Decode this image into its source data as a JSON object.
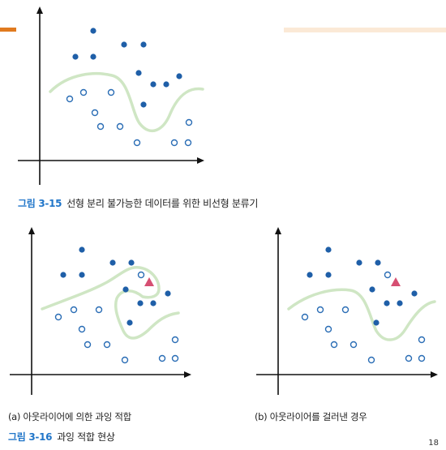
{
  "figures": {
    "fig15": {
      "number": "그림 3-15",
      "caption": "선형 분리 불가능한 데이터를 위한 비선형 분류기",
      "filled_points": [
        [
          115,
          38
        ],
        [
          153,
          55
        ],
        [
          177,
          55
        ],
        [
          93,
          70
        ],
        [
          115,
          70
        ],
        [
          171,
          90
        ],
        [
          221,
          94
        ],
        [
          189,
          104
        ],
        [
          205,
          104
        ],
        [
          177,
          129
        ]
      ],
      "open_points": [
        [
          103,
          114
        ],
        [
          137,
          114
        ],
        [
          86,
          122
        ],
        [
          117,
          139
        ],
        [
          124,
          156
        ],
        [
          148,
          156
        ],
        [
          233,
          151
        ],
        [
          169,
          176
        ],
        [
          215,
          176
        ],
        [
          232,
          176
        ]
      ]
    },
    "fig16": {
      "number": "그림 3-16",
      "caption": "과잉 적합 현상",
      "a": {
        "label": "(a) 아웃라이어에 의한 과잉 적합",
        "filled_points": [
          [
            101,
            308
          ],
          [
            139,
            324
          ],
          [
            162,
            324
          ],
          [
            78,
            339
          ],
          [
            101,
            339
          ],
          [
            155,
            357
          ],
          [
            207,
            362
          ],
          [
            173,
            374
          ],
          [
            189,
            374
          ],
          [
            160,
            398
          ]
        ],
        "open_points": [
          [
            174,
            339
          ],
          [
            91,
            382
          ],
          [
            122,
            382
          ],
          [
            72,
            391
          ],
          [
            101,
            406
          ],
          [
            108,
            425
          ],
          [
            132,
            425
          ],
          [
            216,
            419
          ],
          [
            154,
            444
          ],
          [
            200,
            442
          ],
          [
            216,
            442
          ]
        ],
        "triangle": [
          184,
          348
        ]
      },
      "b": {
        "label": "(b) 아웃라이어를 걸러낸 경우",
        "filled_points": [
          [
            405,
            308
          ],
          [
            443,
            324
          ],
          [
            466,
            324
          ],
          [
            382,
            339
          ],
          [
            405,
            339
          ],
          [
            459,
            357
          ],
          [
            511,
            362
          ],
          [
            477,
            374
          ],
          [
            493,
            374
          ],
          [
            464,
            398
          ]
        ],
        "open_points": [
          [
            478,
            339
          ],
          [
            395,
            382
          ],
          [
            426,
            382
          ],
          [
            376,
            391
          ],
          [
            405,
            406
          ],
          [
            412,
            425
          ],
          [
            436,
            425
          ],
          [
            520,
            419
          ],
          [
            458,
            444
          ],
          [
            504,
            442
          ],
          [
            520,
            442
          ]
        ],
        "triangle": [
          488,
          348
        ]
      }
    }
  },
  "colors": {
    "filled_point": "#1f5fa8",
    "open_point": "#2a6db5",
    "boundary": "#cfe6c4",
    "triangle": "#d64f72",
    "axis": "#111111",
    "figure_number": "#2176c9",
    "accent_orange": "#e07a1f",
    "accent_peach": "#fbe9d6"
  },
  "page_number": "18"
}
